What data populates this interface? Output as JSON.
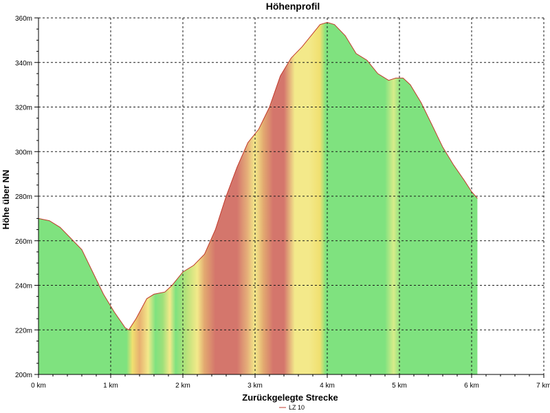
{
  "chart_data": {
    "type": "area",
    "title": "Höhenprofil",
    "xlabel": "Zurückgelegte Strecke",
    "ylabel": "Höhe über NN",
    "xlim": [
      0,
      7
    ],
    "ylim": [
      200,
      360
    ],
    "x_ticks": [
      0,
      1,
      2,
      3,
      4,
      5,
      6,
      7
    ],
    "x_tick_labels": [
      "0 km",
      "1 km",
      "2 km",
      "3 km",
      "4 km",
      "5 km",
      "6 km",
      "7 km"
    ],
    "y_ticks": [
      200,
      220,
      240,
      260,
      280,
      300,
      320,
      340,
      360
    ],
    "y_tick_labels": [
      "200m",
      "220m",
      "240m",
      "260m",
      "280m",
      "300m",
      "320m",
      "340m",
      "360m"
    ],
    "grid": true,
    "legend_position": "bottom-center",
    "series": [
      {
        "name": "LZ 10",
        "color": "#c0392b",
        "x": [
          0,
          0.15,
          0.3,
          0.45,
          0.6,
          0.75,
          0.9,
          1.05,
          1.2,
          1.25,
          1.35,
          1.5,
          1.6,
          1.75,
          1.85,
          2.0,
          2.15,
          2.3,
          2.45,
          2.6,
          2.75,
          2.9,
          3.05,
          3.2,
          3.35,
          3.5,
          3.65,
          3.8,
          3.9,
          4.0,
          4.1,
          4.25,
          4.4,
          4.55,
          4.7,
          4.85,
          4.95,
          5.05,
          5.15,
          5.3,
          5.45,
          5.6,
          5.75,
          5.9,
          6.0,
          6.08
        ],
        "y": [
          270,
          269,
          266,
          261,
          256,
          246,
          236,
          228,
          221,
          220,
          225,
          234,
          236,
          237,
          240,
          246,
          249,
          254,
          265,
          280,
          293,
          304,
          310,
          320,
          334,
          342,
          347,
          353,
          357,
          358,
          357,
          352,
          344,
          341,
          335,
          332,
          333,
          333,
          330,
          322,
          312,
          302,
          294,
          287,
          282,
          279
        ]
      }
    ],
    "gradient_stops": [
      {
        "x": 0.0,
        "color": "#7fe27f"
      },
      {
        "x": 1.22,
        "color": "#7fe27f"
      },
      {
        "x": 1.3,
        "color": "#f0e070"
      },
      {
        "x": 1.4,
        "color": "#e8b070"
      },
      {
        "x": 1.52,
        "color": "#f3e98a"
      },
      {
        "x": 1.62,
        "color": "#7fe27f"
      },
      {
        "x": 1.72,
        "color": "#9de07a"
      },
      {
        "x": 1.82,
        "color": "#f3e98a"
      },
      {
        "x": 1.9,
        "color": "#7fe27f"
      },
      {
        "x": 2.05,
        "color": "#b9e27a"
      },
      {
        "x": 2.2,
        "color": "#f3e98a"
      },
      {
        "x": 2.3,
        "color": "#e2a870"
      },
      {
        "x": 2.45,
        "color": "#d4766c"
      },
      {
        "x": 2.75,
        "color": "#d4766c"
      },
      {
        "x": 2.9,
        "color": "#e6b27a"
      },
      {
        "x": 3.0,
        "color": "#f3e98a"
      },
      {
        "x": 3.12,
        "color": "#e2a870"
      },
      {
        "x": 3.25,
        "color": "#d4766c"
      },
      {
        "x": 3.4,
        "color": "#d4766c"
      },
      {
        "x": 3.55,
        "color": "#f3e98a"
      },
      {
        "x": 3.75,
        "color": "#f3e98a"
      },
      {
        "x": 3.9,
        "color": "#f0e070"
      },
      {
        "x": 3.98,
        "color": "#7fe27f"
      },
      {
        "x": 4.8,
        "color": "#7fe27f"
      },
      {
        "x": 4.92,
        "color": "#d8ec8a"
      },
      {
        "x": 5.02,
        "color": "#7fe27f"
      },
      {
        "x": 6.08,
        "color": "#7fe27f"
      }
    ]
  }
}
